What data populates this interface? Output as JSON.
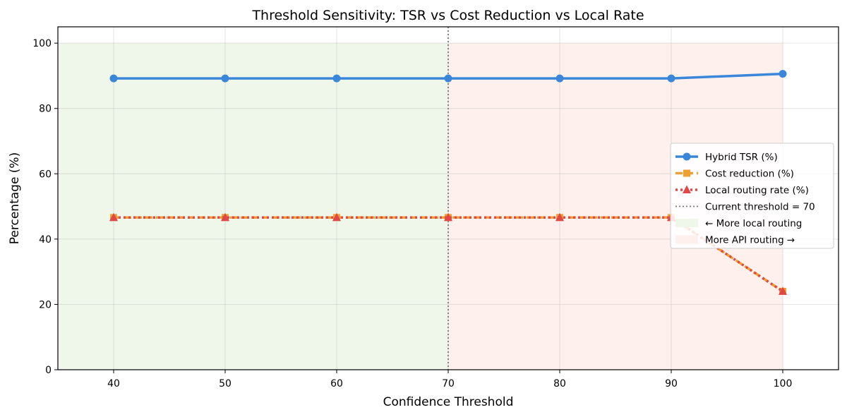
{
  "chart_data": {
    "type": "line",
    "title": "Threshold Sensitivity: TSR vs Cost Reduction vs Local Rate",
    "xlabel": "Confidence Threshold",
    "ylabel": "Percentage (%)",
    "x": [
      40,
      50,
      60,
      70,
      80,
      90,
      100
    ],
    "xlim": [
      35,
      105
    ],
    "ylim": [
      0,
      105
    ],
    "xticks": [
      "40",
      "50",
      "60",
      "70",
      "80",
      "90",
      "100"
    ],
    "yticks": [
      "0",
      "20",
      "40",
      "60",
      "80",
      "100"
    ],
    "grid": true,
    "legend_position": "center-right",
    "series": [
      {
        "name": "Hybrid TSR (%)",
        "values": [
          89.2,
          89.2,
          89.2,
          89.2,
          89.2,
          89.2,
          90.6
        ],
        "color": "#3a87d9",
        "style": "solid",
        "marker": "circle"
      },
      {
        "name": "Cost reduction (%)",
        "values": [
          46.6,
          46.6,
          46.6,
          46.6,
          46.6,
          46.6,
          24.0
        ],
        "color": "#f0a030",
        "style": "dashed",
        "marker": "square"
      },
      {
        "name": "Local routing rate (%)",
        "values": [
          46.6,
          46.6,
          46.6,
          46.6,
          46.6,
          46.6,
          24.0
        ],
        "color": "#e04848",
        "style": "dotted",
        "marker": "triangle"
      }
    ],
    "threshold": {
      "value": 70,
      "label": "Current threshold = 70",
      "color": "#777777"
    },
    "regions": [
      {
        "label": "← More local routing",
        "from": 35,
        "to": 70,
        "ymax": 100,
        "color": "#eef7ea"
      },
      {
        "label": "More API routing →",
        "from": 70,
        "to": 100,
        "ymax": 100,
        "color": "#fdf0ed"
      }
    ]
  }
}
